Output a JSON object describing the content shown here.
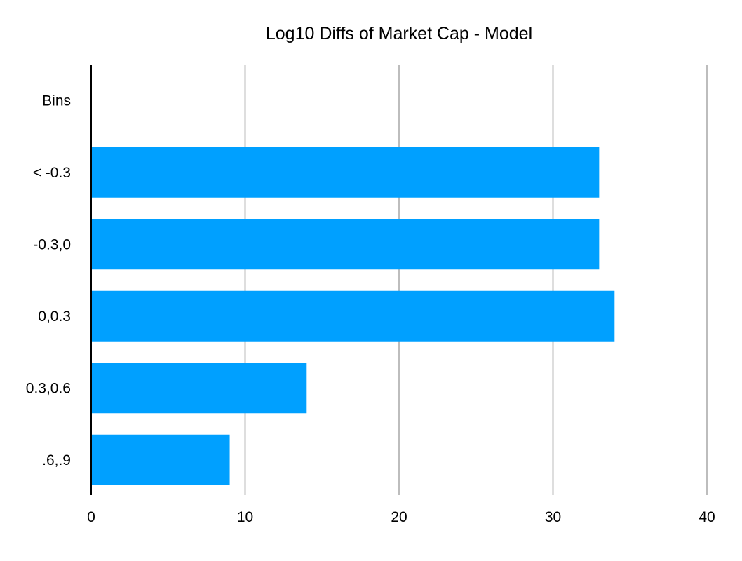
{
  "chart_data": {
    "type": "bar",
    "orientation": "horizontal",
    "title": "Log10 Diffs of Market Cap - Model",
    "xlabel": "",
    "ylabel": "",
    "categories": [
      "Bins",
      "< -0.3",
      "-0.3,0",
      "0,0.3",
      "0.3,0.6",
      ".6,.9"
    ],
    "values": [
      null,
      33,
      33,
      34,
      14,
      9
    ],
    "xlim": [
      0,
      40
    ],
    "xticks": [
      0,
      10,
      20,
      30,
      40
    ],
    "grid": "vertical",
    "legend": "none",
    "colors": {
      "bar": "#00a0ff",
      "grid": "#bdbdbd",
      "axis": "#000000"
    }
  }
}
